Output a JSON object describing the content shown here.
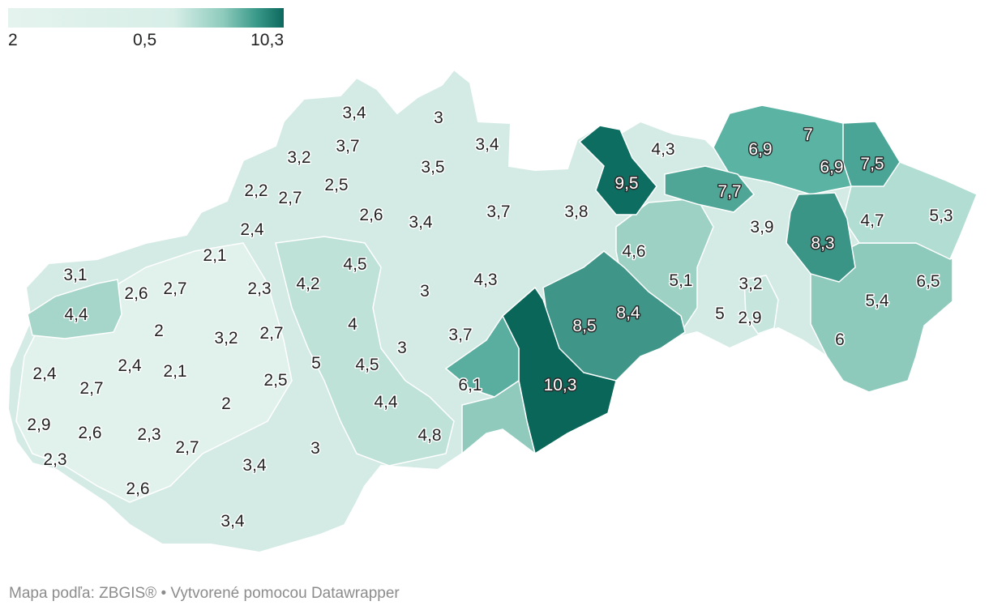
{
  "legend": {
    "min_label": "2",
    "mid_label": "0,5",
    "max_label": "10,3",
    "colors": [
      "#e5f3ee",
      "#d7eee7",
      "#8ecbbd",
      "#3a9a8a",
      "#0c685d"
    ]
  },
  "map": {
    "country_fill": "#d6ece5",
    "border_color": "#ffffff",
    "values": [
      {
        "label": "3,4"
      },
      {
        "label": "3"
      },
      {
        "label": "3,4"
      },
      {
        "label": "3,2"
      },
      {
        "label": "3,7"
      },
      {
        "label": "3,5"
      },
      {
        "label": "4,3"
      },
      {
        "label": "6,9"
      },
      {
        "label": "7"
      },
      {
        "label": "6,9"
      },
      {
        "label": "7,5"
      },
      {
        "label": "9,5"
      },
      {
        "label": "2,2"
      },
      {
        "label": "2,7"
      },
      {
        "label": "2,5"
      },
      {
        "label": "7,7"
      },
      {
        "label": "2,6"
      },
      {
        "label": "3,4"
      },
      {
        "label": "3,7"
      },
      {
        "label": "3,8"
      },
      {
        "label": "4,7"
      },
      {
        "label": "5,3"
      },
      {
        "label": "2,4"
      },
      {
        "label": "3,9"
      },
      {
        "label": "8,3"
      },
      {
        "label": "2,1"
      },
      {
        "label": "4,6"
      },
      {
        "label": "3,1"
      },
      {
        "label": "4,5"
      },
      {
        "label": "4,3"
      },
      {
        "label": "2,6"
      },
      {
        "label": "2,7"
      },
      {
        "label": "2,3"
      },
      {
        "label": "4,2"
      },
      {
        "label": "3"
      },
      {
        "label": "5,1"
      },
      {
        "label": "3,2"
      },
      {
        "label": "6,5"
      },
      {
        "label": "4,4"
      },
      {
        "label": "8,4"
      },
      {
        "label": "5"
      },
      {
        "label": "2,9"
      },
      {
        "label": "5,4"
      },
      {
        "label": "2"
      },
      {
        "label": "4"
      },
      {
        "label": "8,5"
      },
      {
        "label": "3,2"
      },
      {
        "label": "2,7"
      },
      {
        "label": "3"
      },
      {
        "label": "3,7"
      },
      {
        "label": "6"
      },
      {
        "label": "5"
      },
      {
        "label": "2,4"
      },
      {
        "label": "2,4"
      },
      {
        "label": "2,1"
      },
      {
        "label": "4,5"
      },
      {
        "label": "2,5"
      },
      {
        "label": "2,7"
      },
      {
        "label": "6,1"
      },
      {
        "label": "10,3"
      },
      {
        "label": "4,4"
      },
      {
        "label": "2"
      },
      {
        "label": "2,9"
      },
      {
        "label": "2,6"
      },
      {
        "label": "2,3"
      },
      {
        "label": "2,7"
      },
      {
        "label": "4,8"
      },
      {
        "label": "3"
      },
      {
        "label": "2,3"
      },
      {
        "label": "3,4"
      },
      {
        "label": "2,6"
      },
      {
        "label": "3,4"
      }
    ]
  },
  "footer": {
    "credit": "Mapa podľa: ZBGIS® • Vytvorené pomocou Datawrapper"
  }
}
